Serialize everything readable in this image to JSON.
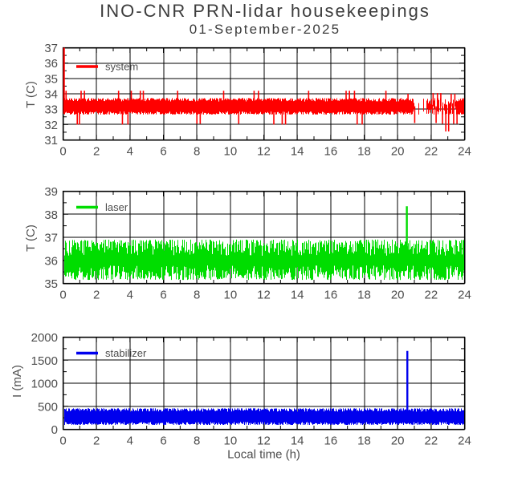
{
  "figure": {
    "title": "INO-CNR PRN-lidar housekeepings",
    "date": "01-September-2025",
    "xlabel": "Local time (h)",
    "background_color": "#ffffff",
    "axis_color": "#000000",
    "text_color": "#4d4d4d"
  },
  "chart_data": [
    {
      "type": "line",
      "series_name": "system",
      "legend_label": "system",
      "ylabel": "T (C)",
      "color": "#ff0000",
      "xlim": [
        0,
        24
      ],
      "ylim": [
        31,
        37
      ],
      "xticks": [
        0,
        2,
        4,
        6,
        8,
        10,
        12,
        14,
        16,
        18,
        20,
        22,
        24
      ],
      "yticks": [
        31,
        32,
        33,
        34,
        35,
        36,
        37
      ],
      "x_minor_step": 1,
      "y_minor_step": 0.5,
      "grid": true,
      "legend_position": "top-left",
      "band": {
        "low": 32.65,
        "high": 33.72,
        "edge_jitter": 0.22
      },
      "sparse_region": {
        "from": 20.9,
        "to": 23.45,
        "skip_prob": 0.38
      },
      "startup_spike": {
        "x": 0.06,
        "from": 32.7,
        "to": 37.0
      },
      "events_up": [
        {
          "x": 0.18,
          "y": 34.2
        },
        {
          "x": 1.08,
          "y": 34.2
        },
        {
          "x": 1.28,
          "y": 34.2
        },
        {
          "x": 3.32,
          "y": 34.2
        },
        {
          "x": 4.08,
          "y": 34.2
        },
        {
          "x": 4.62,
          "y": 34.2
        },
        {
          "x": 4.8,
          "y": 34.2
        },
        {
          "x": 6.85,
          "y": 34.2
        },
        {
          "x": 9.6,
          "y": 34.2
        },
        {
          "x": 11.42,
          "y": 34.2
        },
        {
          "x": 11.68,
          "y": 34.2
        },
        {
          "x": 14.68,
          "y": 34.2
        },
        {
          "x": 16.92,
          "y": 34.2
        },
        {
          "x": 17.12,
          "y": 34.2
        },
        {
          "x": 17.42,
          "y": 34.2
        },
        {
          "x": 19.3,
          "y": 34.2
        },
        {
          "x": 20.62,
          "y": 34.0
        },
        {
          "x": 22.12,
          "y": 34.05
        },
        {
          "x": 22.38,
          "y": 34.05
        },
        {
          "x": 22.58,
          "y": 34.05
        },
        {
          "x": 23.2,
          "y": 34.0
        },
        {
          "x": 23.42,
          "y": 34.0
        }
      ],
      "events_down": [
        {
          "x": 0.85,
          "y": 32.0
        },
        {
          "x": 0.98,
          "y": 32.0
        },
        {
          "x": 3.55,
          "y": 32.0
        },
        {
          "x": 3.88,
          "y": 32.0
        },
        {
          "x": 8.0,
          "y": 32.05
        },
        {
          "x": 8.2,
          "y": 32.05
        },
        {
          "x": 10.5,
          "y": 32.05
        },
        {
          "x": 12.6,
          "y": 32.0
        },
        {
          "x": 13.1,
          "y": 32.0
        },
        {
          "x": 13.3,
          "y": 32.0
        },
        {
          "x": 17.58,
          "y": 32.0
        },
        {
          "x": 17.88,
          "y": 32.0
        },
        {
          "x": 21.02,
          "y": 32.1
        },
        {
          "x": 22.3,
          "y": 32.1
        },
        {
          "x": 22.68,
          "y": 32.05
        },
        {
          "x": 22.88,
          "y": 31.55
        },
        {
          "x": 23.05,
          "y": 31.55
        },
        {
          "x": 23.35,
          "y": 32.05
        },
        {
          "x": 23.55,
          "y": 32.05
        }
      ]
    },
    {
      "type": "line",
      "series_name": "laser",
      "legend_label": "laser",
      "ylabel": "T (C)",
      "color": "#00dd00",
      "xlim": [
        0,
        24
      ],
      "ylim": [
        35,
        39
      ],
      "xticks": [
        0,
        2,
        4,
        6,
        8,
        10,
        12,
        14,
        16,
        18,
        20,
        22,
        24
      ],
      "yticks": [
        35,
        36,
        37,
        38,
        39
      ],
      "x_minor_step": 1,
      "y_minor_step": 0.5,
      "grid": true,
      "legend_position": "top-left",
      "band": {
        "low": 35.15,
        "high": 36.9,
        "edge_jitter": 0.7
      },
      "events_up": [
        {
          "x": 20.55,
          "y": 38.35
        }
      ],
      "events_down": []
    },
    {
      "type": "line",
      "series_name": "stabilizer",
      "legend_label": "stabilizer",
      "ylabel": "I (mA)",
      "color": "#0000ee",
      "xlim": [
        0,
        24
      ],
      "ylim": [
        0,
        2000
      ],
      "xticks": [
        0,
        2,
        4,
        6,
        8,
        10,
        12,
        14,
        16,
        18,
        20,
        22,
        24
      ],
      "yticks": [
        0,
        500,
        1000,
        1500,
        2000
      ],
      "x_minor_step": 1,
      "y_minor_step": 250,
      "grid": true,
      "legend_position": "top-left",
      "band": {
        "low": 95,
        "high": 455,
        "edge_jitter": 70
      },
      "events_up": [
        {
          "x": 20.58,
          "y": 1700
        }
      ],
      "events_down": []
    }
  ]
}
